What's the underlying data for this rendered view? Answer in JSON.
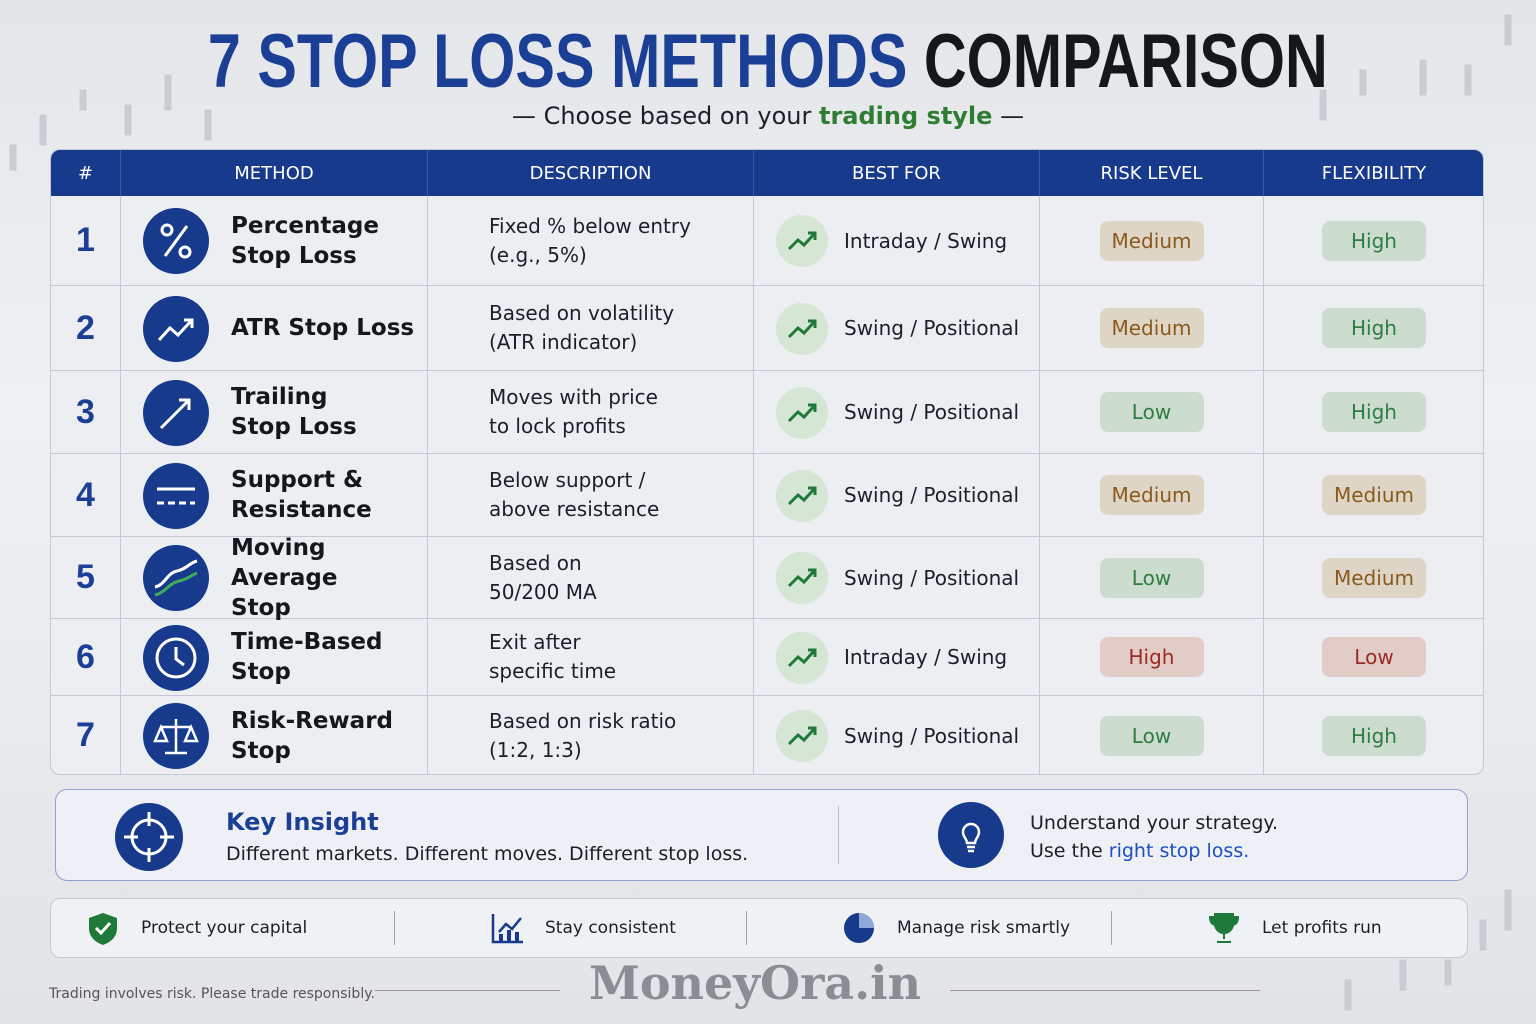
{
  "header": {
    "title_main": "7 STOP LOSS METHODS",
    "title_accent": "COMPARISON",
    "subtitle": "Choose based on your",
    "subtitle_highlight": "trading style"
  },
  "table": {
    "columns": [
      "#",
      "METHOD",
      "DESCRIPTION",
      "BEST FOR",
      "RISK LEVEL",
      "FLEXIBILITY"
    ],
    "rows": [
      {
        "number": 1,
        "method": [
          "Percentage",
          "Stop Loss"
        ],
        "description": [
          "Fixed % below entry",
          "(e.g., 5%)"
        ],
        "best_for": "Intraday / Swing",
        "risk": {
          "text": "Medium",
          "color": "#8a5a1c"
        },
        "flexibility": {
          "text": "High",
          "color": "#2e7d42"
        }
      },
      {
        "number": 2,
        "method": [
          "ATR Stop Loss"
        ],
        "description": [
          "Based on volatility",
          "(ATR indicator)"
        ],
        "best_for": "Swing / Positional",
        "risk": {
          "text": "Medium",
          "color": "#8a5a1c"
        },
        "flexibility": {
          "text": "High",
          "color": "#2e7d42"
        }
      },
      {
        "number": 3,
        "method": [
          "Trailing",
          "Stop Loss"
        ],
        "description": [
          "Moves with price",
          "to lock profits"
        ],
        "best_for": "Swing / Positional",
        "risk": {
          "text": "Low",
          "color": "#2e7d42"
        },
        "flexibility": {
          "text": "High",
          "color": "#2e7d42"
        }
      },
      {
        "number": 4,
        "method": [
          "Support &",
          "Resistance"
        ],
        "description": [
          "Below support /",
          "above resistance"
        ],
        "best_for": "Swing / Positional",
        "risk": {
          "text": "Medium",
          "color": "#8a5a1c"
        },
        "flexibility": {
          "text": "Medium",
          "color": "#8a5a1c"
        }
      },
      {
        "number": 5,
        "method": [
          "Moving Average",
          "Stop"
        ],
        "description": [
          "Based on",
          "50/200 MA"
        ],
        "best_for": "Swing / Positional",
        "risk": {
          "text": "Low",
          "color": "#2e7d42"
        },
        "flexibility": {
          "text": "Medium",
          "color": "#8a5a1c"
        }
      },
      {
        "number": 6,
        "method": [
          "Time-Based",
          "Stop"
        ],
        "description": [
          "Exit after",
          "specific time"
        ],
        "best_for": "Intraday / Swing",
        "risk": {
          "text": "High",
          "color": "#9b2a22"
        },
        "flexibility": {
          "text": "Low",
          "color": "#9b2a22"
        }
      },
      {
        "number": 7,
        "method": [
          "Risk-Reward",
          "Stop"
        ],
        "description": [
          "Based on risk ratio",
          "(1:2, 1:3)"
        ],
        "best_for": "Swing / Positional",
        "risk": {
          "text": "Low",
          "color": "#2e7d42"
        },
        "flexibility": {
          "text": "High",
          "color": "#2e7d42"
        }
      }
    ]
  },
  "insight": {
    "title": "Key Insight",
    "text": "Different markets. Different moves. Different stop loss.",
    "right_line1": "Understand your strategy.",
    "right_line2_prefix": "Use the",
    "right_line2_link": "right stop loss."
  },
  "benefits": [
    "Protect your capital",
    "Stay consistent",
    "Manage risk smartly",
    "Let profits run"
  ],
  "footer": {
    "disclaimer": "Trading involves risk. Please trade responsibly.",
    "brand": "MoneyOra.in"
  }
}
